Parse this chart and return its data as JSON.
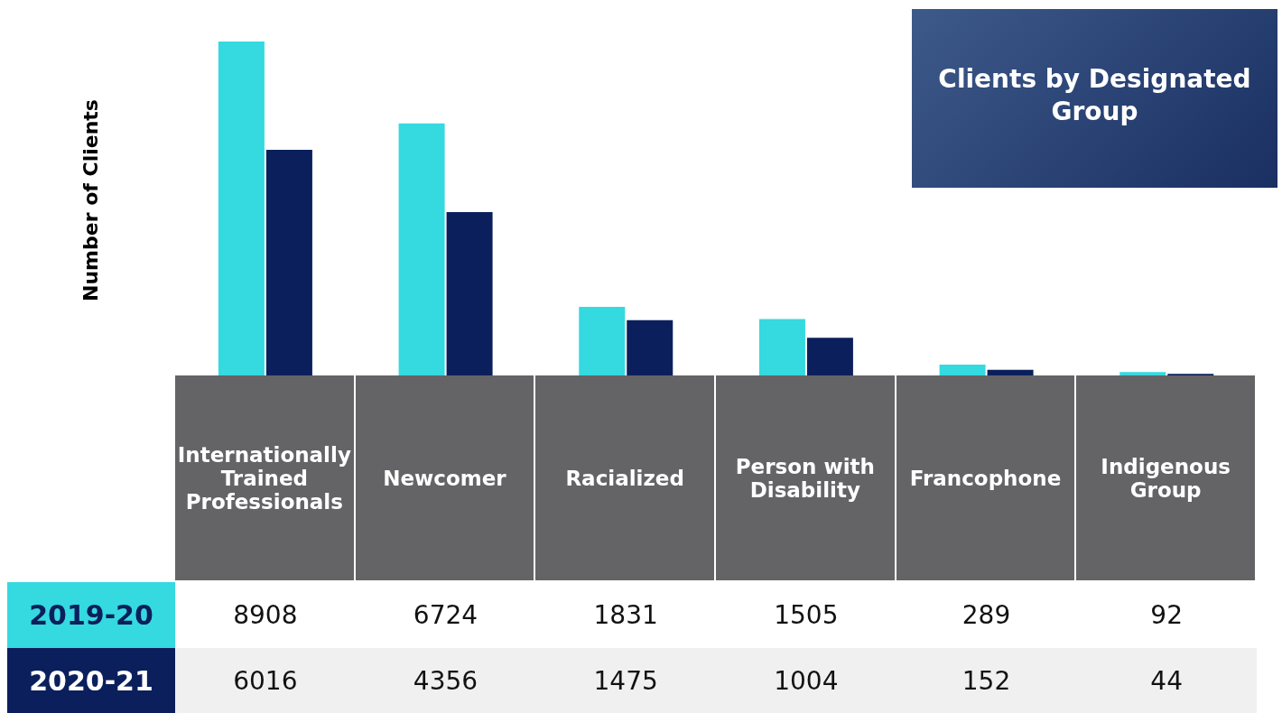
{
  "chart_data": {
    "type": "bar",
    "title": "Clients by Designated Group",
    "ylabel": "Number of Clients",
    "categories": [
      "Internationally Trained Professionals",
      "Newcomer",
      "Racialized",
      "Person with Disability",
      "Francophone",
      "Indigenous Group"
    ],
    "series": [
      {
        "name": "2019-20",
        "color": "#35d9e0",
        "values": [
          8908,
          6724,
          1831,
          1505,
          289,
          92
        ]
      },
      {
        "name": "2020-21",
        "color": "#0b1f5c",
        "values": [
          6016,
          4356,
          1475,
          1004,
          152,
          44
        ]
      }
    ],
    "data_labels": true
  }
}
